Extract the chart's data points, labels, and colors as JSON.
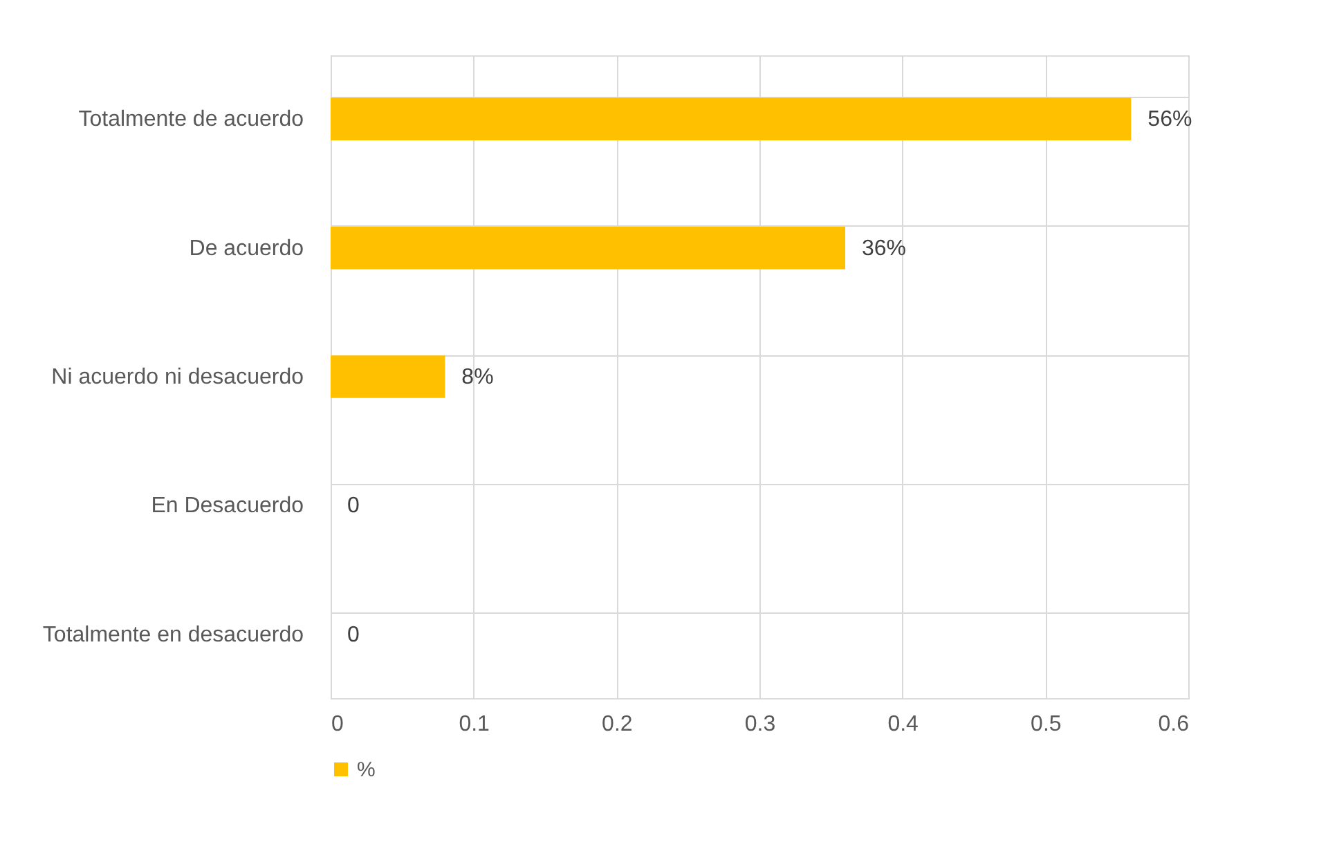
{
  "chart_data": {
    "type": "bar",
    "orientation": "horizontal",
    "categories": [
      "Totalmente de acuerdo",
      "De acuerdo",
      "Ni acuerdo ni desacuerdo",
      "En Desacuerdo",
      "Totalmente en desacuerdo"
    ],
    "series": [
      {
        "name": "%",
        "color": "#ffc000",
        "values": [
          0.56,
          0.36,
          0.08,
          0,
          0
        ],
        "value_labels": [
          "56%",
          "36%",
          "8%",
          "0",
          "0"
        ]
      }
    ],
    "xlim": [
      0,
      0.6
    ],
    "xticks": [
      0,
      0.1,
      0.2,
      0.3,
      0.4,
      0.5,
      0.6
    ],
    "grid": true,
    "legend": "bottom"
  }
}
